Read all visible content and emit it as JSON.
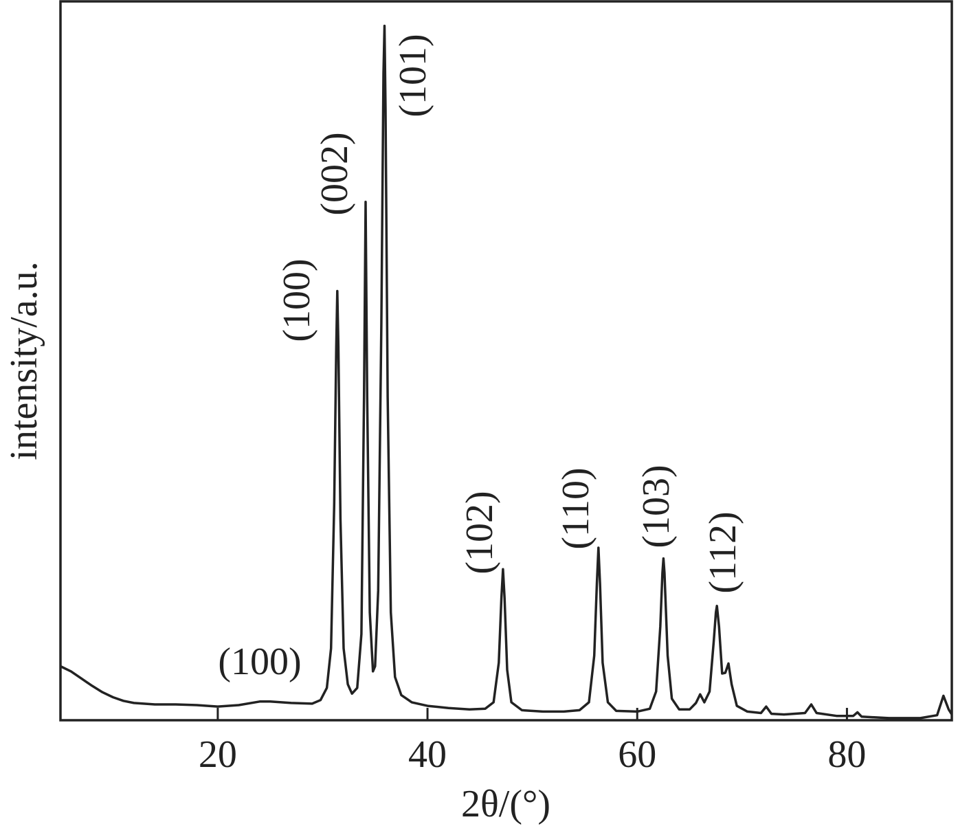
{
  "chart_data": {
    "type": "line",
    "xlabel": "2θ/(°)",
    "ylabel": "intensity/a.u.",
    "xlim": [
      5,
      90
    ],
    "xticks": [
      20,
      40,
      60,
      80
    ],
    "ylim": [
      0,
      100
    ],
    "annotations": [
      "(100)",
      "(100)",
      "(002)",
      "(101)",
      "(102)",
      "(110)",
      "(103)",
      "(112)"
    ],
    "series": [
      {
        "color": "#222222",
        "x": [
          5,
          6,
          7,
          8,
          9,
          10,
          11,
          12,
          14,
          16,
          18,
          20,
          22,
          24,
          25,
          27,
          29,
          29.8,
          30.4,
          30.8,
          31.1,
          31.3,
          31.4,
          31.5,
          31.7,
          32,
          32.4,
          32.8,
          33.3,
          33.7,
          33.95,
          34.1,
          34.25,
          34.5,
          34.8,
          35.0,
          35.3,
          35.6,
          35.8,
          35.9,
          36.0,
          36.2,
          36.5,
          36.9,
          37.5,
          38.5,
          40,
          42,
          44,
          45.5,
          46.3,
          46.8,
          47.05,
          47.2,
          47.35,
          47.6,
          48,
          49,
          51,
          53,
          54.5,
          55.4,
          55.9,
          56.15,
          56.3,
          56.45,
          56.7,
          57.2,
          58,
          60,
          61.2,
          61.8,
          62.2,
          62.4,
          62.5,
          62.6,
          62.9,
          63.3,
          64,
          65,
          65.6,
          66,
          66.4,
          66.9,
          67.3,
          67.5,
          67.6,
          67.8,
          68.1,
          68.4,
          68.7,
          69,
          69.5,
          70.5,
          71.8,
          72.3,
          72.8,
          74,
          76,
          76.6,
          77.1,
          79,
          80.6,
          81,
          81.4,
          84,
          87,
          88.6,
          89.2,
          89.7,
          90
        ],
        "values": [
          7.5,
          6.8,
          5.8,
          4.8,
          3.9,
          3.2,
          2.7,
          2.4,
          2.2,
          2.2,
          2.1,
          1.9,
          2.1,
          2.6,
          2.6,
          2.4,
          2.3,
          2.8,
          4.5,
          10,
          30,
          52,
          59.7,
          52,
          28,
          10,
          5,
          3.7,
          4.5,
          12,
          45,
          72.1,
          45,
          15,
          6.8,
          7.5,
          18,
          55,
          90,
          96.6,
          85,
          45,
          15,
          6,
          3.5,
          2.5,
          2,
          1.7,
          1.5,
          1.6,
          2.5,
          8,
          17,
          21,
          17,
          7,
          2.5,
          1.4,
          1.2,
          1.2,
          1.4,
          2.5,
          9,
          19,
          24,
          19,
          8,
          2.5,
          1.3,
          1.2,
          1.6,
          4,
          13,
          20.5,
          22.5,
          20.5,
          9,
          3,
          1.5,
          1.5,
          2.4,
          3.6,
          2.5,
          4,
          11,
          15,
          15.9,
          13,
          6.5,
          6.6,
          7.9,
          5,
          2,
          1.2,
          1.0,
          1.9,
          0.9,
          0.8,
          1.0,
          2.2,
          1.0,
          0.6,
          0.6,
          1.1,
          0.5,
          0.3,
          0.3,
          0.7,
          3.4,
          1.5,
          0.8
        ]
      }
    ]
  }
}
